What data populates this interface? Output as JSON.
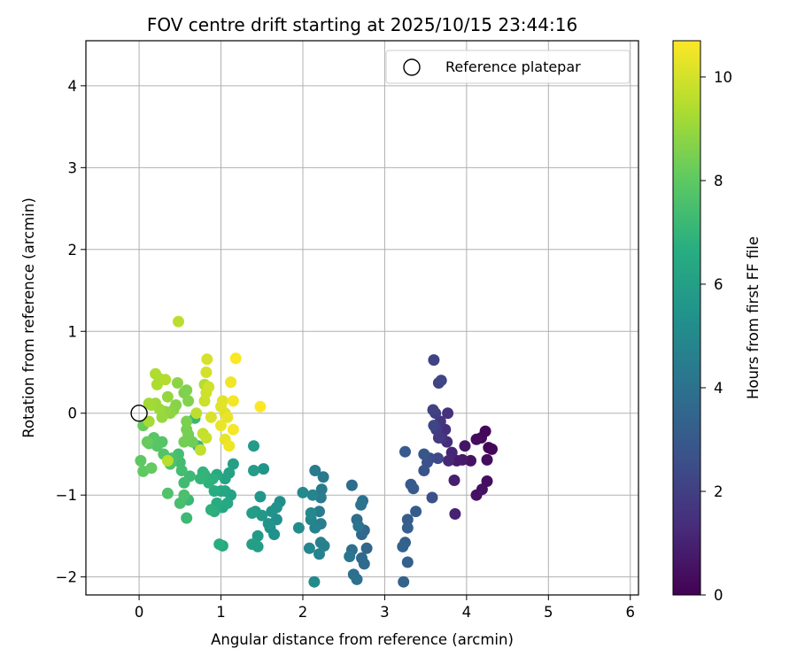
{
  "chart_data": {
    "type": "scatter",
    "title": "FOV centre drift starting at 2025/10/15 23:44:16",
    "xlabel": "Angular distance from reference (arcmin)",
    "ylabel": "Rotation from reference (arcmin)",
    "xlim": [
      -0.65,
      6.1
    ],
    "ylim": [
      -2.22,
      4.55
    ],
    "xticks": [
      "0",
      "1",
      "2",
      "3",
      "4",
      "5",
      "6"
    ],
    "yticks": [
      "−2",
      "−1",
      "0",
      "1",
      "2",
      "3",
      "4"
    ],
    "xtick_values": [
      0,
      1,
      2,
      3,
      4,
      5,
      6
    ],
    "ytick_values": [
      -2,
      -1,
      0,
      1,
      2,
      3,
      4
    ],
    "grid": true,
    "legend": {
      "placement": "top-right",
      "entries": [
        "Reference platepar"
      ]
    },
    "reference_point": {
      "x": 0,
      "y": 0
    },
    "colorbar": {
      "label": "Hours from first FF file",
      "colormap": "viridis",
      "range": [
        0,
        10.7
      ],
      "ticks": [
        "0",
        "2",
        "4",
        "6",
        "8",
        "10"
      ],
      "tick_values": [
        0,
        2,
        4,
        6,
        8,
        10
      ]
    },
    "points": [
      [
        4.27,
        -0.42,
        0.1
      ],
      [
        4.31,
        -0.44,
        0.15
      ],
      [
        4.23,
        -0.22,
        0.2
      ],
      [
        4.18,
        -0.3,
        0.25
      ],
      [
        4.12,
        -0.32,
        0.3
      ],
      [
        4.25,
        -0.57,
        0.35
      ],
      [
        4.25,
        -0.83,
        0.4
      ],
      [
        4.19,
        -0.93,
        0.45
      ],
      [
        4.12,
        -1.0,
        0.5
      ],
      [
        4.05,
        -0.58,
        0.55
      ],
      [
        3.98,
        -0.4,
        0.6
      ],
      [
        3.95,
        -0.57,
        0.7
      ],
      [
        3.88,
        -0.58,
        0.8
      ],
      [
        3.85,
        -0.82,
        0.9
      ],
      [
        3.86,
        -1.23,
        1.0
      ],
      [
        3.82,
        -0.48,
        1.1
      ],
      [
        3.78,
        -0.58,
        1.2
      ],
      [
        3.76,
        -0.35,
        1.3
      ],
      [
        3.74,
        -0.2,
        1.4
      ],
      [
        3.77,
        0.0,
        1.5
      ],
      [
        3.7,
        -0.3,
        1.6
      ],
      [
        3.68,
        -0.1,
        1.7
      ],
      [
        3.66,
        -0.3,
        1.8
      ],
      [
        3.63,
        -0.2,
        1.9
      ],
      [
        3.62,
        0.0,
        2.0
      ],
      [
        3.59,
        0.04,
        2.05
      ],
      [
        3.6,
        0.65,
        2.1
      ],
      [
        3.66,
        0.37,
        2.15
      ],
      [
        3.69,
        0.4,
        2.2
      ],
      [
        3.6,
        -0.15,
        2.25
      ],
      [
        3.65,
        -0.55,
        2.35
      ],
      [
        3.55,
        -0.55,
        2.45
      ],
      [
        3.58,
        -1.03,
        2.55
      ],
      [
        3.52,
        -0.6,
        2.65
      ],
      [
        3.48,
        -0.7,
        2.75
      ],
      [
        3.48,
        -0.5,
        2.85
      ],
      [
        3.32,
        -0.87,
        2.95
      ],
      [
        3.35,
        -0.92,
        3.0
      ],
      [
        3.25,
        -0.47,
        3.05
      ],
      [
        3.38,
        -1.2,
        3.1
      ],
      [
        3.28,
        -1.3,
        3.15
      ],
      [
        3.28,
        -1.4,
        3.2
      ],
      [
        3.25,
        -1.58,
        3.25
      ],
      [
        3.28,
        -1.82,
        3.3
      ],
      [
        3.22,
        -1.63,
        3.35
      ],
      [
        3.23,
        -2.06,
        3.4
      ],
      [
        2.78,
        -1.65,
        3.5
      ],
      [
        2.75,
        -1.43,
        3.55
      ],
      [
        2.72,
        -1.48,
        3.6
      ],
      [
        2.72,
        -1.77,
        3.65
      ],
      [
        2.75,
        -1.84,
        3.7
      ],
      [
        2.66,
        -1.3,
        3.75
      ],
      [
        2.6,
        -0.88,
        3.8
      ],
      [
        2.6,
        -1.67,
        3.85
      ],
      [
        2.62,
        -1.97,
        3.9
      ],
      [
        2.66,
        -2.03,
        3.95
      ],
      [
        2.73,
        -1.07,
        4.0
      ],
      [
        2.71,
        -1.12,
        4.05
      ],
      [
        2.68,
        -1.38,
        4.1
      ],
      [
        2.57,
        -1.75,
        4.15
      ],
      [
        2.2,
        -1.0,
        4.25
      ],
      [
        2.25,
        -0.78,
        4.3
      ],
      [
        2.23,
        -0.93,
        4.35
      ],
      [
        2.22,
        -1.03,
        4.4
      ],
      [
        2.15,
        -0.7,
        4.45
      ],
      [
        2.2,
        -1.2,
        4.5
      ],
      [
        2.22,
        -1.35,
        4.55
      ],
      [
        2.22,
        -1.58,
        4.6
      ],
      [
        2.26,
        -1.62,
        4.65
      ],
      [
        2.2,
        -1.72,
        4.7
      ],
      [
        2.15,
        -1.4,
        4.75
      ],
      [
        2.12,
        -1.0,
        4.8
      ],
      [
        2.1,
        -1.3,
        4.85
      ],
      [
        2.08,
        -1.65,
        4.9
      ],
      [
        2.1,
        -1.22,
        4.95
      ],
      [
        2.0,
        -0.97,
        5.0
      ],
      [
        2.14,
        -2.06,
        5.05
      ],
      [
        1.95,
        -1.4,
        5.1
      ],
      [
        1.72,
        -1.08,
        5.2
      ],
      [
        1.68,
        -1.3,
        5.25
      ],
      [
        1.6,
        -1.4,
        5.3
      ],
      [
        1.65,
        -1.48,
        5.35
      ],
      [
        1.68,
        -1.15,
        5.4
      ],
      [
        1.62,
        -1.2,
        5.45
      ],
      [
        1.58,
        -1.35,
        5.5
      ],
      [
        1.52,
        -0.68,
        5.55
      ],
      [
        1.48,
        -1.02,
        5.6
      ],
      [
        1.5,
        -1.25,
        5.65
      ],
      [
        1.42,
        -1.2,
        5.7
      ],
      [
        1.45,
        -1.5,
        5.75
      ],
      [
        1.4,
        -0.4,
        5.8
      ],
      [
        1.4,
        -0.7,
        5.85
      ],
      [
        1.38,
        -1.22,
        5.9
      ],
      [
        1.45,
        -1.63,
        5.95
      ],
      [
        1.38,
        -1.6,
        6.0
      ],
      [
        1.15,
        -0.62,
        6.05
      ],
      [
        1.1,
        -0.73,
        6.1
      ],
      [
        1.12,
        -1.0,
        6.15
      ],
      [
        1.05,
        -0.8,
        6.2
      ],
      [
        1.05,
        -0.95,
        6.25
      ],
      [
        1.0,
        -0.95,
        6.3
      ],
      [
        1.02,
        -1.15,
        6.35
      ],
      [
        1.08,
        -1.1,
        6.4
      ],
      [
        1.02,
        -1.62,
        6.45
      ],
      [
        0.95,
        -0.75,
        6.5
      ],
      [
        0.95,
        -1.1,
        6.55
      ],
      [
        0.92,
        -0.95,
        6.6
      ],
      [
        0.98,
        -1.6,
        6.65
      ],
      [
        0.92,
        -1.2,
        6.7
      ],
      [
        0.9,
        -0.8,
        6.75
      ],
      [
        0.88,
        -1.18,
        6.8
      ],
      [
        0.85,
        -0.85,
        6.85
      ],
      [
        0.8,
        -0.75,
        6.9
      ],
      [
        0.78,
        -0.72,
        6.95
      ],
      [
        0.75,
        -0.8,
        7.0
      ],
      [
        0.72,
        -0.4,
        7.05
      ],
      [
        0.68,
        -0.06,
        7.1
      ],
      [
        0.6,
        -1.06,
        7.15
      ],
      [
        0.58,
        -1.28,
        7.2
      ],
      [
        0.62,
        -0.77,
        7.25
      ],
      [
        0.55,
        -0.85,
        7.3
      ],
      [
        0.5,
        -0.6,
        7.35
      ],
      [
        0.52,
        -0.7,
        7.4
      ],
      [
        0.48,
        -0.5,
        7.45
      ],
      [
        0.5,
        -1.1,
        7.5
      ],
      [
        0.55,
        -1.0,
        7.55
      ],
      [
        0.4,
        -0.55,
        7.6
      ],
      [
        0.38,
        -0.62,
        7.65
      ],
      [
        0.35,
        -0.98,
        7.7
      ],
      [
        0.3,
        -0.5,
        7.75
      ],
      [
        0.28,
        -0.35,
        7.8
      ],
      [
        0.22,
        -0.4,
        7.85
      ],
      [
        0.18,
        -0.3,
        7.9
      ],
      [
        0.12,
        -0.37,
        7.95
      ],
      [
        0.02,
        -0.58,
        8.0
      ],
      [
        0.05,
        -0.71,
        8.05
      ],
      [
        0.15,
        -0.67,
        8.1
      ],
      [
        0.1,
        -0.35,
        8.15
      ],
      [
        0.05,
        -0.15,
        8.2
      ],
      [
        0.62,
        -0.33,
        8.25
      ],
      [
        0.65,
        -0.35,
        8.3
      ],
      [
        0.6,
        -0.26,
        8.35
      ],
      [
        0.55,
        -0.35,
        8.4
      ],
      [
        0.58,
        -0.2,
        8.45
      ],
      [
        0.58,
        -0.1,
        8.5
      ],
      [
        0.55,
        0.25,
        8.55
      ],
      [
        0.58,
        0.28,
        8.6
      ],
      [
        0.6,
        0.15,
        8.65
      ],
      [
        0.45,
        0.1,
        8.7
      ],
      [
        0.42,
        0.04,
        8.75
      ],
      [
        0.47,
        0.37,
        8.8
      ],
      [
        0.38,
        0.0,
        8.85
      ],
      [
        0.32,
        0.02,
        8.9
      ],
      [
        0.35,
        0.2,
        8.95
      ],
      [
        0.28,
        -0.05,
        9.0
      ],
      [
        0.25,
        0.05,
        9.05
      ],
      [
        0.2,
        0.12,
        9.1
      ],
      [
        0.15,
        0.1,
        9.15
      ],
      [
        0.12,
        0.12,
        9.2
      ],
      [
        0.12,
        -0.1,
        9.25
      ],
      [
        0.25,
        0.42,
        9.3
      ],
      [
        0.22,
        0.35,
        9.35
      ],
      [
        0.2,
        0.48,
        9.4
      ],
      [
        0.32,
        0.41,
        9.45
      ],
      [
        0.8,
        0.35,
        9.5
      ],
      [
        0.35,
        -0.58,
        9.55
      ],
      [
        0.48,
        1.12,
        9.6
      ],
      [
        0.7,
        0.0,
        9.65
      ],
      [
        0.75,
        -0.45,
        9.7
      ],
      [
        0.78,
        -0.25,
        9.75
      ],
      [
        0.82,
        -0.3,
        9.8
      ],
      [
        0.8,
        0.15,
        9.85
      ],
      [
        0.82,
        0.25,
        9.9
      ],
      [
        0.85,
        0.32,
        9.95
      ],
      [
        0.82,
        0.5,
        10.0
      ],
      [
        0.83,
        0.66,
        10.05
      ],
      [
        0.88,
        -0.05,
        10.1
      ],
      [
        1.05,
        0.0,
        10.15
      ],
      [
        1.0,
        0.08,
        10.2
      ],
      [
        1.02,
        0.15,
        10.25
      ],
      [
        1.05,
        -0.32,
        10.3
      ],
      [
        1.08,
        -0.05,
        10.35
      ],
      [
        1.0,
        -0.15,
        10.4
      ],
      [
        1.1,
        -0.4,
        10.45
      ],
      [
        1.12,
        0.38,
        10.5
      ],
      [
        1.15,
        0.15,
        10.55
      ],
      [
        1.15,
        -0.2,
        10.6
      ],
      [
        1.18,
        0.67,
        10.65
      ],
      [
        1.48,
        0.08,
        10.7
      ]
    ]
  }
}
